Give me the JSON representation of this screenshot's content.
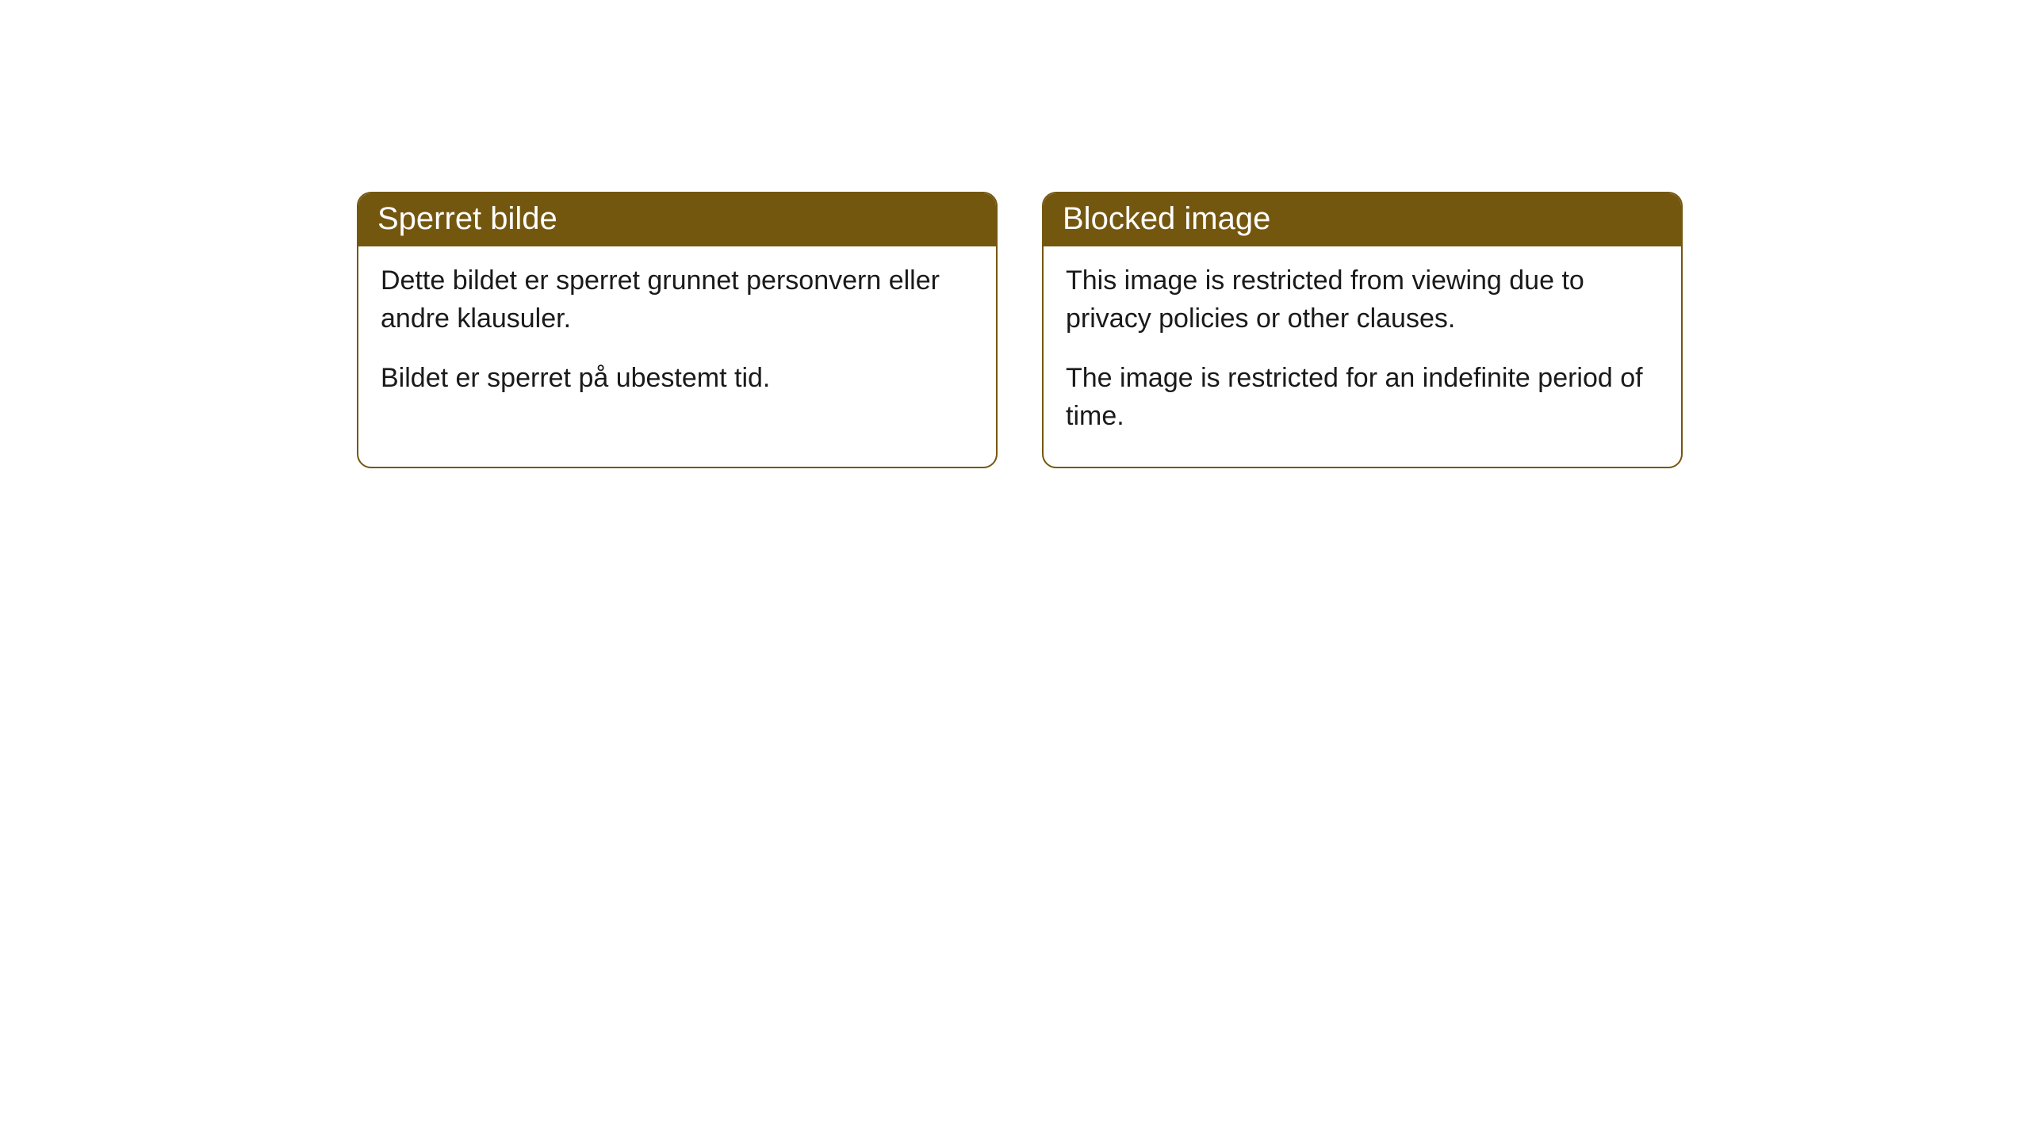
{
  "cards": [
    {
      "title": "Sperret bilde",
      "paragraph1": "Dette bildet er sperret grunnet personvern eller andre klausuler.",
      "paragraph2": "Bildet er sperret på ubestemt tid."
    },
    {
      "title": "Blocked image",
      "paragraph1": "This image is restricted from viewing due to privacy policies or other clauses.",
      "paragraph2": "The image is restricted for an indefinite period of time."
    }
  ],
  "styling": {
    "header_bg_color": "#74570f",
    "header_text_color": "#ffffff",
    "border_color": "#74570f",
    "body_bg_color": "#ffffff",
    "body_text_color": "#1a1a1a",
    "border_radius": 18,
    "header_fontsize": 40,
    "body_fontsize": 34
  }
}
